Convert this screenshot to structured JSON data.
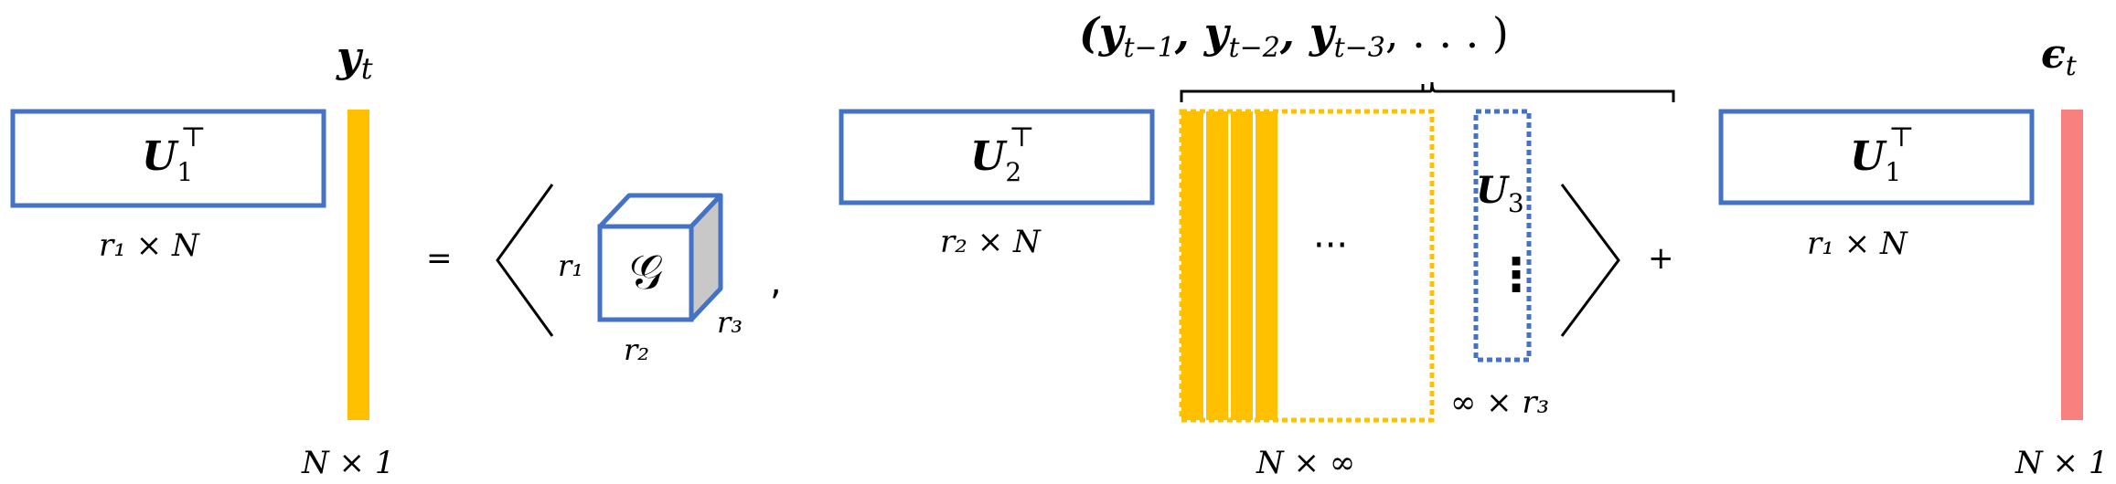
{
  "colors": {
    "blue": "#4472C4",
    "yellow": "#FFC000",
    "red": "#F8807F",
    "grey_face": "#C8C8C8",
    "black": "#000000"
  },
  "left_side": {
    "y_label_base": "y",
    "y_label_sub": "t",
    "u1_base": "U",
    "u1_sub": "1",
    "u1_sup": "⊤",
    "u1_dim": "r₁ × N",
    "y_dim": "N × 1"
  },
  "operators": {
    "equals": "=",
    "comma": ",",
    "plus": "+"
  },
  "core_tensor": {
    "symbol": "𝒢",
    "r1": "r₁",
    "r2": "r₂",
    "r3": "r₃"
  },
  "middle": {
    "u2_base": "U",
    "u2_sub": "2",
    "u2_sup": "⊤",
    "u2_dim": "r₂ × N",
    "lags_label": "(y",
    "lags_text": "(yt−1, yt−2, yt−3, . . . )",
    "ellipsis": "···",
    "matrix_dim": "N × ∞",
    "u3_base": "U",
    "u3_sub": "3",
    "u3_vdots": "⋮",
    "u3_dim": "∞ × r₃"
  },
  "right_side": {
    "eps_base": "ϵ",
    "eps_sub": "t",
    "u1_base": "U",
    "u1_sub": "1",
    "u1_sup": "⊤",
    "u1_dim": "r₁ × N",
    "eps_dim": "N × 1"
  }
}
